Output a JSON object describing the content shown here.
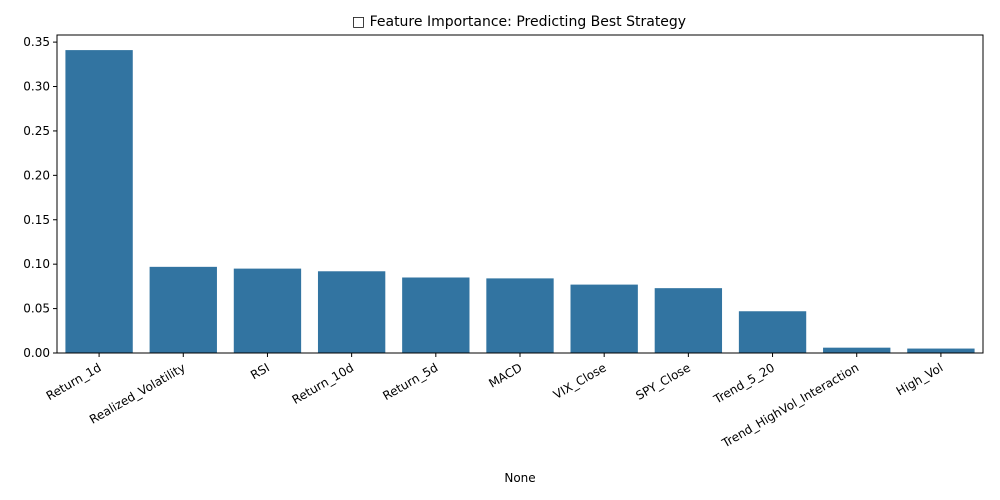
{
  "chart_data": {
    "type": "bar",
    "title": "□ Feature Importance: Predicting Best Strategy",
    "xlabel": "None",
    "ylabel": "",
    "categories": [
      "Return_1d",
      "Realized_Volatility",
      "RSI",
      "Return_10d",
      "Return_5d",
      "MACD",
      "VIX_Close",
      "SPY_Close",
      "Trend_5_20",
      "Trend_HighVol_Interaction",
      "High_Vol"
    ],
    "values": [
      0.341,
      0.097,
      0.095,
      0.092,
      0.085,
      0.084,
      0.077,
      0.073,
      0.047,
      0.006,
      0.005
    ],
    "ylim": [
      0,
      0.358
    ],
    "yticks": [
      "0.00",
      "0.05",
      "0.10",
      "0.15",
      "0.20",
      "0.25",
      "0.30",
      "0.35"
    ],
    "bar_color": "#3274a1",
    "grid": false
  }
}
